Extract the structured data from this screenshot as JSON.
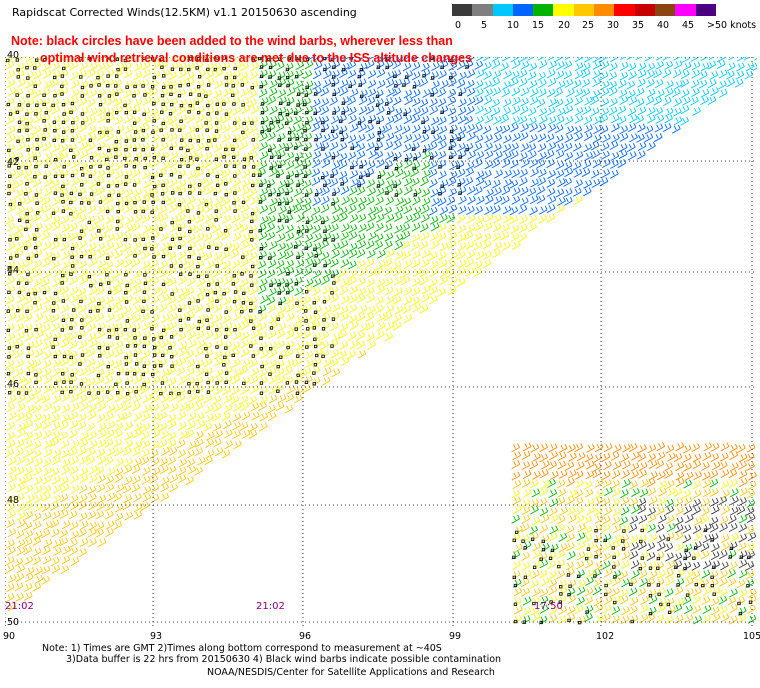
{
  "title": "Rapidscat Corrected Winds(12.5KM) v1.1 20150630 ascending",
  "note_line1": "Note: black circles have been added to the wind barbs, wherever less than",
  "note_line2": "optimal wind retrieval conditions are met due to the ISS altitude changes",
  "color_scale": {
    "labels": [
      "0",
      "5",
      "10",
      "15",
      "20",
      "25",
      "30",
      "35",
      "40",
      "45",
      ">50 knots"
    ],
    "colors": [
      "#3a3a3a",
      "#7f7f7f",
      "#00c8ff",
      "#0064ff",
      "#00b400",
      "#ffff00",
      "#ffc800",
      "#ff8c00",
      "#ff0000",
      "#c80000",
      "#8b4513",
      "#ff00ff",
      "#4b0082"
    ]
  },
  "map": {
    "lat_labels": [
      "40",
      "42",
      "44",
      "46",
      "48",
      "50"
    ],
    "lon_labels": [
      "90",
      "93",
      "96",
      "99",
      "102",
      "105"
    ],
    "time_labels": [
      "21:02",
      "21:02",
      "17:50"
    ]
  },
  "footer": {
    "line1": "Note: 1) Times are GMT 2)Times along bottom correspond to measurement at ~40S",
    "line2": "3)Data buffer is 22 hrs from 20150630 4) Black wind barbs indicate possible contamination",
    "line3": "NOAA/NESDIS/Center for Satellite Applications and Research"
  }
}
